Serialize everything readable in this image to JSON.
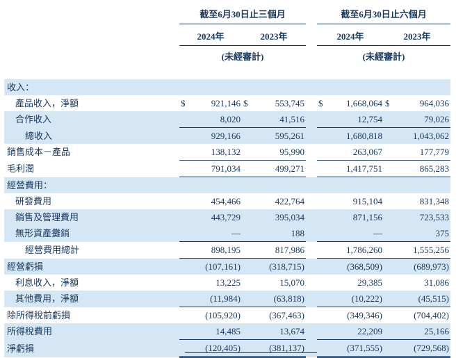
{
  "meta": {
    "text_color": "#17375E",
    "stripe_color": "#D5E6F4",
    "currency_symbol": "$"
  },
  "header": {
    "group_three_months": "截至6月30日止三個月",
    "group_six_months": "截至6月30日止六個月",
    "years": [
      "2024年",
      "2023年",
      "2024年",
      "2023年"
    ],
    "unaudited": "(未經審計)"
  },
  "table": {
    "rows": [
      {
        "label": "收入：",
        "indent": 0,
        "values": [
          "",
          "",
          "",
          ""
        ],
        "stripe": true
      },
      {
        "label": "產品收入，淨額",
        "indent": 1,
        "values": [
          "921,146",
          "553,745",
          "1,668,064",
          "964,036"
        ],
        "dollar": true,
        "stripe": false
      },
      {
        "label": "合作收入",
        "indent": 1,
        "values": [
          "8,020",
          "41,516",
          "12,754",
          "79,026"
        ],
        "stripe": true,
        "underline": true
      },
      {
        "label": "總收入",
        "indent": 2,
        "values": [
          "929,166",
          "595,261",
          "1,680,818",
          "1,043,062"
        ],
        "stripe": true
      },
      {
        "label": "銷售成本－產品",
        "indent": 0,
        "values": [
          "138,132",
          "95,990",
          "263,067",
          "177,779"
        ],
        "stripe": false,
        "underline": true
      },
      {
        "label": "毛利潤",
        "indent": 0,
        "values": [
          "791,034",
          "499,271",
          "1,417,751",
          "865,283"
        ],
        "stripe": false,
        "underline": true
      },
      {
        "label": "經營費用：",
        "indent": 0,
        "values": [
          "",
          "",
          "",
          ""
        ],
        "stripe": true
      },
      {
        "label": "研發費用",
        "indent": 1,
        "values": [
          "454,466",
          "422,764",
          "915,104",
          "831,348"
        ],
        "stripe": false
      },
      {
        "label": "銷售及管理費用",
        "indent": 1,
        "values": [
          "443,729",
          "395,034",
          "871,156",
          "723,533"
        ],
        "stripe": true
      },
      {
        "label": "無形資產攤銷",
        "indent": 1,
        "values": [
          "—",
          "188",
          "—",
          "375"
        ],
        "stripe": true,
        "underline": true
      },
      {
        "label": "經營費用總計",
        "indent": 2,
        "values": [
          "898,195",
          "817,986",
          "1,786,260",
          "1,555,256"
        ],
        "stripe": false,
        "underline": true
      },
      {
        "label": "經營虧損",
        "indent": 0,
        "values": [
          "(107,161)",
          "(318,715)",
          "(368,509)",
          "(689,973)"
        ],
        "stripe": true
      },
      {
        "label": "利息收入，淨額",
        "indent": 1,
        "values": [
          "13,225",
          "15,070",
          "29,385",
          "31,086"
        ],
        "stripe": false
      },
      {
        "label": "其他費用，淨額",
        "indent": 1,
        "values": [
          "(11,984)",
          "(63,818)",
          "(10,222)",
          "(45,515)"
        ],
        "stripe": true,
        "underline": true
      },
      {
        "label": "除所得稅前虧損",
        "indent": 0,
        "values": [
          "(105,920)",
          "(367,463)",
          "(349,346)",
          "(704,402)"
        ],
        "stripe": false
      },
      {
        "label": "所得稅費用",
        "indent": 0,
        "values": [
          "14,485",
          "13,674",
          "22,209",
          "25,166"
        ],
        "stripe": true,
        "underline": true
      },
      {
        "label": "淨虧損",
        "indent": 0,
        "values": [
          "(120,405)",
          "(381,137)",
          "(371,555)",
          "(729,568)"
        ],
        "stripe": true,
        "double_underline": true
      }
    ]
  }
}
